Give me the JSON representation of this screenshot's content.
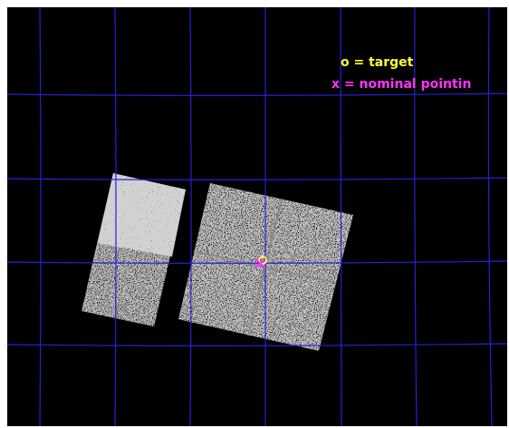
{
  "legend": {
    "target": "o = target",
    "pointing": "x = nominal pointin"
  }
}
